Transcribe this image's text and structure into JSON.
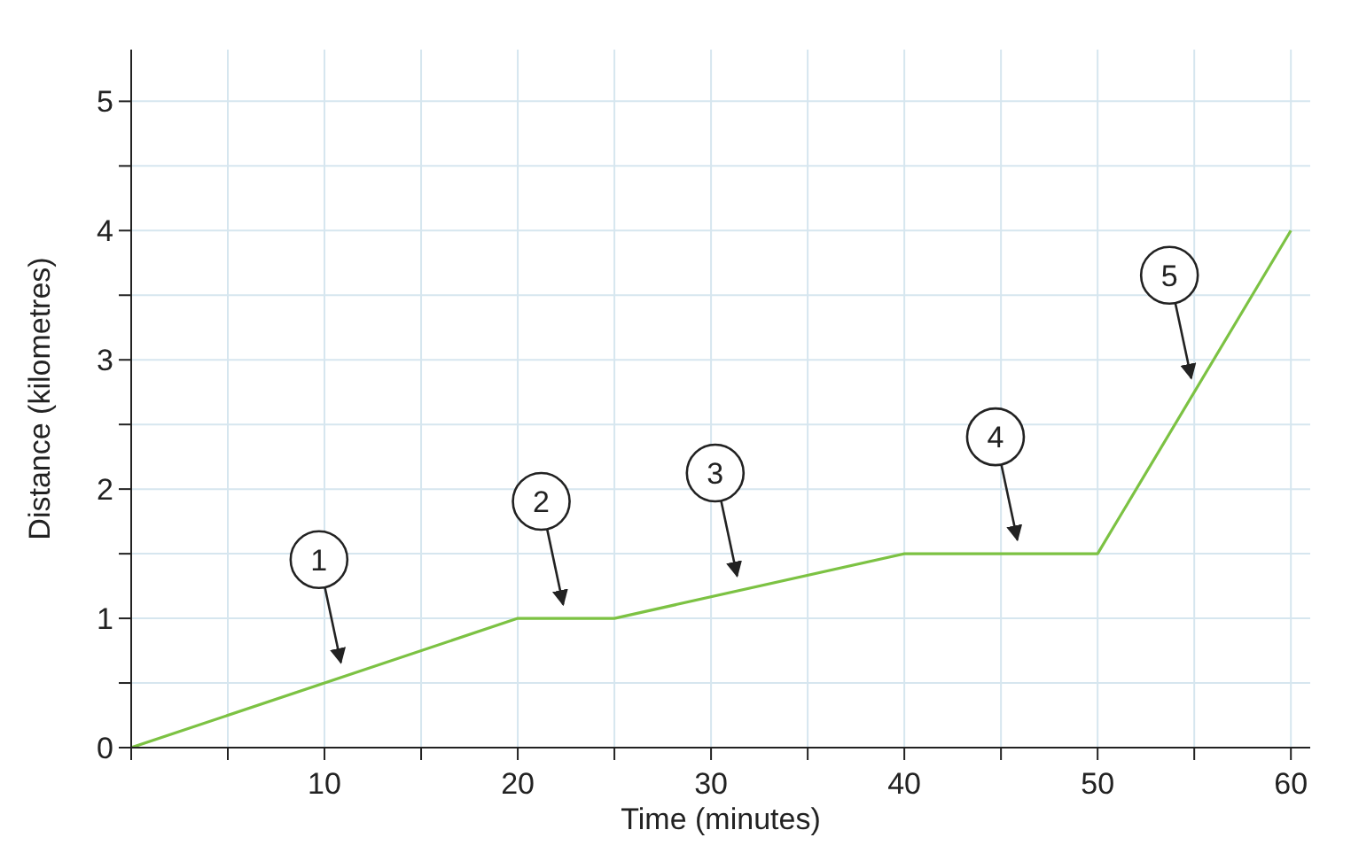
{
  "chart_data": {
    "type": "line",
    "xlabel": "Time (minutes)",
    "ylabel": "Distance (kilometres)",
    "x": [
      0,
      20,
      25,
      40,
      50,
      60
    ],
    "series": [
      {
        "color": "#7cc243",
        "values": [
          0,
          1,
          1,
          1.5,
          1.5,
          4
        ]
      }
    ],
    "xlim": [
      0,
      61
    ],
    "ylim": [
      0,
      5.4
    ],
    "xticks": [
      {
        "value": 0,
        "label": null
      },
      {
        "value": 5,
        "label": null
      },
      10,
      {
        "value": 15,
        "label": null
      },
      20,
      {
        "value": 25,
        "label": null
      },
      30,
      {
        "value": 35,
        "label": null
      },
      40,
      {
        "value": 45,
        "label": null
      },
      50,
      {
        "value": 55,
        "label": null
      },
      60
    ],
    "yticks": [
      0,
      {
        "value": 0.5,
        "label": null
      },
      1,
      {
        "value": 1.5,
        "label": null
      },
      2,
      {
        "value": 2.5,
        "label": null
      },
      3,
      {
        "value": 3.5,
        "label": null
      },
      4,
      {
        "value": 4.5,
        "label": null
      },
      5
    ],
    "grid": true,
    "annotations": [
      {
        "text": "1",
        "x": 11,
        "y": 0.55
      },
      {
        "text": "2",
        "x": 22.5,
        "y": 1
      },
      {
        "text": "3",
        "x": 31.5,
        "y": 1.22
      },
      {
        "text": "4",
        "x": 46,
        "y": 1.5
      },
      {
        "text": "5",
        "x": 55,
        "y": 2.75
      }
    ]
  }
}
